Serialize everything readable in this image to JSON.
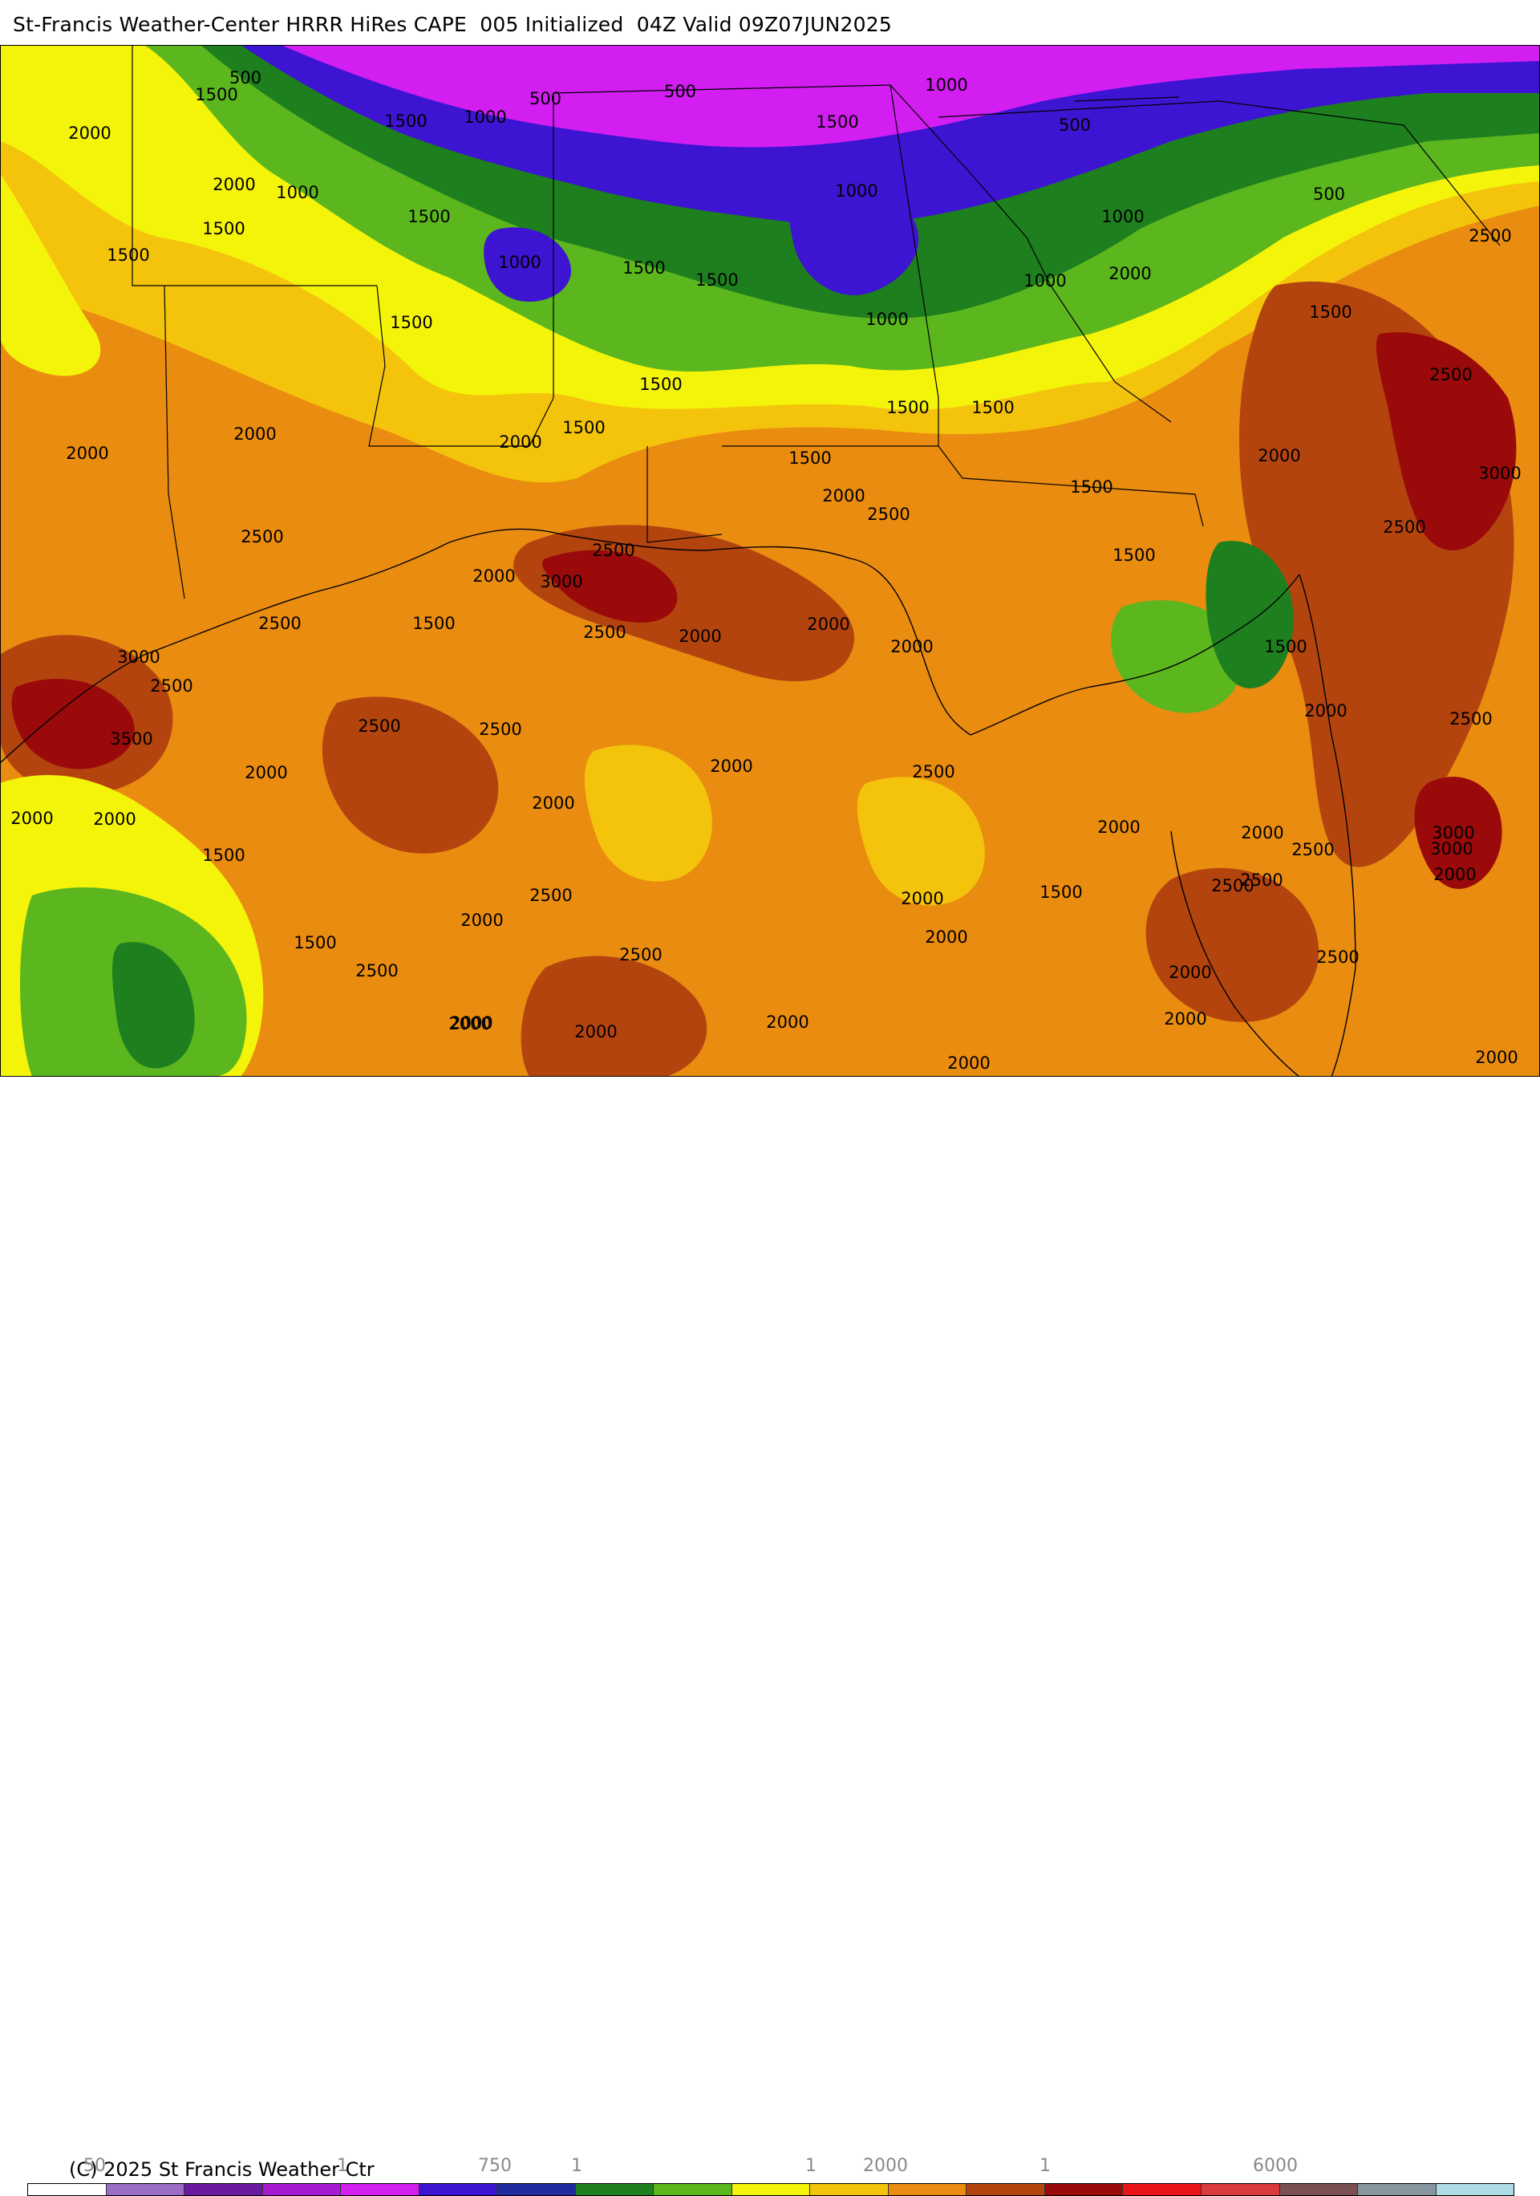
{
  "header": {
    "title": "St-Francis Weather-Center HRRR HiRes CAPE  005 Initialized  04Z Valid 09Z07JUN2025"
  },
  "map": {
    "contour_labels": [
      {
        "text": "500"
      },
      {
        "text": "1500"
      },
      {
        "text": "2000"
      },
      {
        "text": "1500"
      },
      {
        "text": "500"
      },
      {
        "text": "500"
      },
      {
        "text": "1000"
      },
      {
        "text": "1000"
      },
      {
        "text": "1500"
      },
      {
        "text": "500"
      },
      {
        "text": "1500"
      },
      {
        "text": "1000"
      },
      {
        "text": "1000"
      },
      {
        "text": "500"
      },
      {
        "text": "1000"
      },
      {
        "text": "2000"
      },
      {
        "text": "1500"
      },
      {
        "text": "1500"
      },
      {
        "text": "1500"
      },
      {
        "text": "2500"
      },
      {
        "text": "1000"
      },
      {
        "text": "1500"
      },
      {
        "text": "1500"
      },
      {
        "text": "2000"
      },
      {
        "text": "1000"
      },
      {
        "text": "1500"
      },
      {
        "text": "1000"
      },
      {
        "text": "1500"
      },
      {
        "text": "2500"
      },
      {
        "text": "2000"
      },
      {
        "text": "2000"
      },
      {
        "text": "2000"
      },
      {
        "text": "1500"
      },
      {
        "text": "1500"
      },
      {
        "text": "1500"
      },
      {
        "text": "1500"
      },
      {
        "text": "2000"
      },
      {
        "text": "1500"
      },
      {
        "text": "3000"
      },
      {
        "text": "2500"
      },
      {
        "text": "2000"
      },
      {
        "text": "2500"
      },
      {
        "text": "1500"
      },
      {
        "text": "2500"
      },
      {
        "text": "2500"
      },
      {
        "text": "2000"
      },
      {
        "text": "3000"
      },
      {
        "text": "1500"
      },
      {
        "text": "2500"
      },
      {
        "text": "3000"
      },
      {
        "text": "2500"
      },
      {
        "text": "2000"
      },
      {
        "text": "2000"
      },
      {
        "text": "2000"
      },
      {
        "text": "1500"
      },
      {
        "text": "3000"
      },
      {
        "text": "2500"
      },
      {
        "text": "2000"
      },
      {
        "text": "2500"
      },
      {
        "text": "3500"
      },
      {
        "text": "2500"
      },
      {
        "text": "2500"
      },
      {
        "text": "2000"
      },
      {
        "text": "2000"
      },
      {
        "text": "2000"
      },
      {
        "text": "2500"
      },
      {
        "text": "2000"
      },
      {
        "text": "2000"
      },
      {
        "text": "2000"
      },
      {
        "text": "2000"
      },
      {
        "text": "3000"
      },
      {
        "text": "2500"
      },
      {
        "text": "2000"
      },
      {
        "text": "2500"
      },
      {
        "text": "1500"
      },
      {
        "text": "2000"
      },
      {
        "text": "2500"
      },
      {
        "text": "2000"
      },
      {
        "text": "1500"
      },
      {
        "text": "2500"
      },
      {
        "text": "2500"
      },
      {
        "text": "2500"
      },
      {
        "text": "2000"
      },
      {
        "text": "2500"
      },
      {
        "text": "2000"
      },
      {
        "text": "1500"
      },
      {
        "text": "2000"
      },
      {
        "text": "2000"
      },
      {
        "text": "2000"
      },
      {
        "text": "2000"
      },
      {
        "text": "2000"
      },
      {
        "text": "2000"
      },
      {
        "text": "2000"
      }
    ]
  },
  "footer": {
    "copyright": "(C) 2025 St Francis Weather Ctr",
    "tick_labels": [
      "50",
      "1",
      "750",
      "1",
      "1",
      "2000",
      "1",
      "6000"
    ]
  },
  "colorbar": {
    "colors": [
      "#ffffff",
      "#9a6cc4",
      "#6a1aa0",
      "#a81ad2",
      "#d21ef0",
      "#3c14d2",
      "#202a9c",
      "#1e7f1e",
      "#5cb61e",
      "#f4f40a",
      "#f4c40c",
      "#ea8c10",
      "#b4440e",
      "#9a0a0a",
      "#e81418",
      "#d83a3e",
      "#7a5052",
      "#87969e",
      "#aedce6"
    ]
  }
}
